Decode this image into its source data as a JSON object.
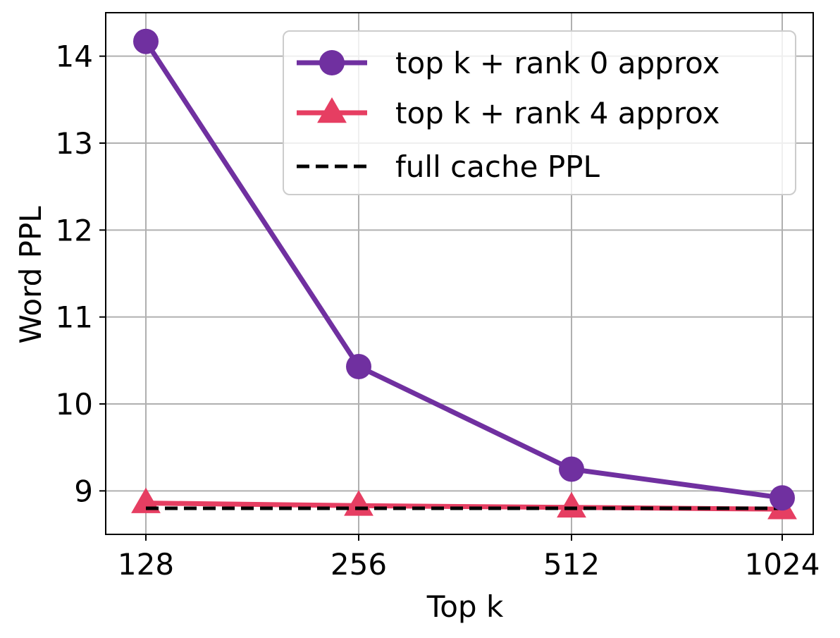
{
  "chart_data": {
    "type": "line",
    "title": "",
    "xlabel": "Top k",
    "ylabel": "Word PPL",
    "x_tick_labels": [
      "128",
      "256",
      "512",
      "1024"
    ],
    "y_ticks": [
      9,
      10,
      11,
      12,
      13,
      14
    ],
    "y_tick_labels": [
      "9",
      "10",
      "11",
      "12",
      "13",
      "14"
    ],
    "ylim": [
      8.5,
      14.5
    ],
    "grid": true,
    "legend_position": "top-right",
    "series": [
      {
        "name": "top k + rank 0 approx",
        "values": [
          14.17,
          10.43,
          9.25,
          8.92
        ],
        "color": "#7030a0",
        "marker": "circle",
        "line_style": "solid"
      },
      {
        "name": "top k + rank 4 approx",
        "values": [
          8.86,
          8.83,
          8.81,
          8.79
        ],
        "color": "#e63e62",
        "marker": "triangle",
        "line_style": "solid"
      },
      {
        "name": "full cache PPL",
        "values": [
          8.8,
          8.8,
          8.8,
          8.8
        ],
        "color": "#000000",
        "marker": "none",
        "line_style": "dashed"
      }
    ]
  }
}
